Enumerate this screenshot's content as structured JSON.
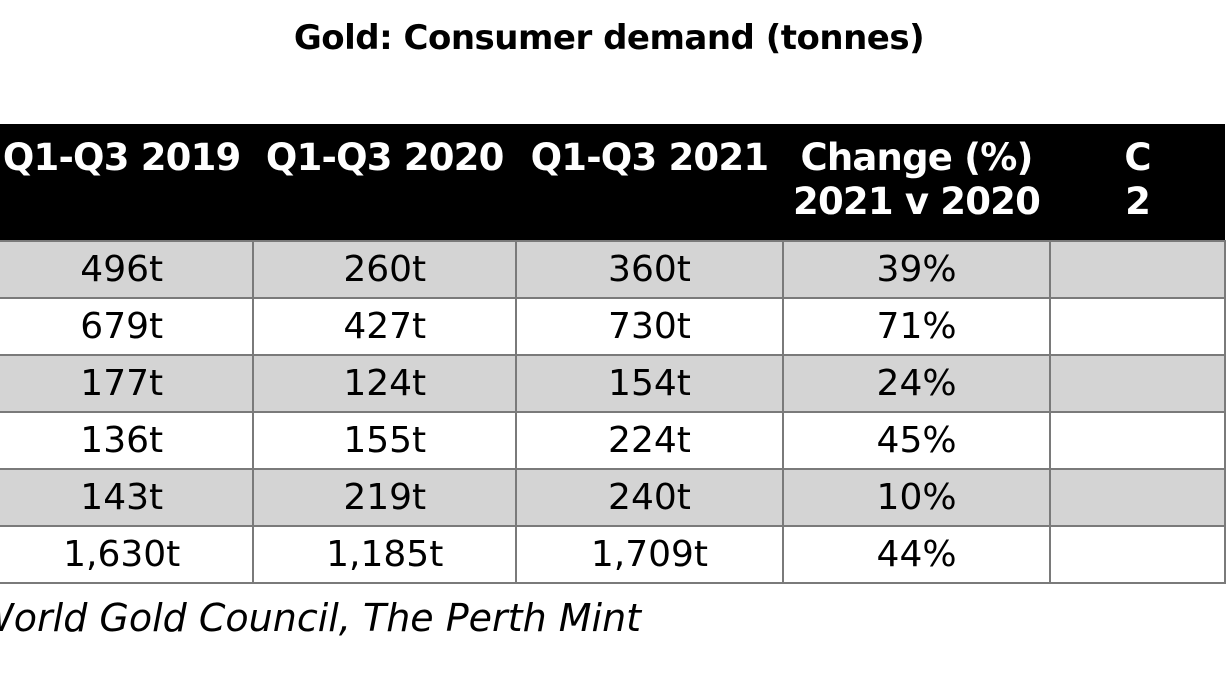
{
  "chart_data": {
    "type": "table",
    "title": "Gold: Consumer demand (tonnes)",
    "columns": [
      "",
      "Q1-Q3 2019",
      "Q1-Q3 2020",
      "Q1-Q3 2021",
      "Change (%)\n2021 v 2020",
      ""
    ],
    "header": {
      "q2019": "Q1-Q3 2019",
      "q2020": "Q1-Q3 2020",
      "q2021": "Q1-Q3 2021",
      "change_line1": "Change (%)",
      "change_line2": "2021 v 2020",
      "extra_line1": "C",
      "extra_line2": "2"
    },
    "rows": [
      {
        "label": "",
        "q2019": "496t",
        "q2020": "260t",
        "q2021": "360t",
        "change": "39%",
        "extra": ""
      },
      {
        "label": "",
        "q2019": "679t",
        "q2020": "427t",
        "q2021": "730t",
        "change": "71%",
        "extra": ""
      },
      {
        "label": "",
        "q2019": "177t",
        "q2020": "124t",
        "q2021": "154t",
        "change": "24%",
        "extra": ""
      },
      {
        "label": "",
        "q2019": "136t",
        "q2020": "155t",
        "q2021": "224t",
        "change": "45%",
        "extra": ""
      },
      {
        "label": "",
        "q2019": "143t",
        "q2020": "219t",
        "q2021": "240t",
        "change": "10%",
        "extra": ""
      },
      {
        "label": "",
        "q2019": "1,630t",
        "q2020": "1,185t",
        "q2021": "1,709t",
        "change": "44%",
        "extra": ""
      }
    ],
    "source": "Source: World Gold Council, The Perth Mint"
  },
  "colors": {
    "header_bg": "#000000",
    "header_text": "#ffffff",
    "shaded_row": "#d4d4d4",
    "plain_row": "#ffffff",
    "border": "#7a7a7a"
  }
}
